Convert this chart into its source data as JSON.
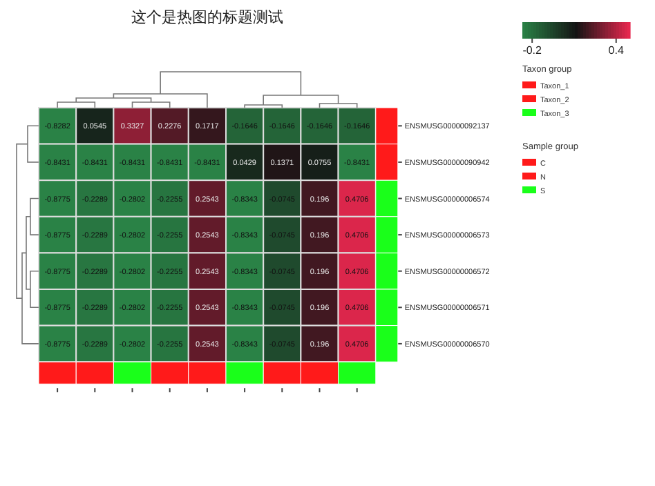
{
  "chart_data": [
    {
      "type": "heatmap",
      "title": "这个是热图的标题测试",
      "categories": [
        null,
        null,
        null,
        null,
        null,
        null,
        null,
        null,
        null
      ],
      "y_categories": [
        "ENSMUSG00000092137",
        "ENSMUSG00000090942",
        "ENSMUSG00000006574",
        "ENSMUSG00000006573",
        "ENSMUSG00000006572",
        "ENSMUSG00000006571",
        "ENSMUSG00000006570"
      ],
      "cells": [
        [
          -0.8282,
          0.0545,
          0.3327,
          0.2276,
          0.1717,
          -0.1646,
          -0.1646,
          -0.1646,
          -0.1646
        ],
        [
          -0.8431,
          -0.8431,
          -0.8431,
          -0.8431,
          -0.8431,
          0.0429,
          0.1371,
          0.0755,
          -0.8431
        ],
        [
          -0.8775,
          -0.2289,
          -0.2802,
          -0.2255,
          0.2543,
          -0.8343,
          -0.0745,
          0.196,
          0.4706
        ],
        [
          -0.8775,
          -0.2289,
          -0.2802,
          -0.2255,
          0.2543,
          -0.8343,
          -0.0745,
          0.196,
          0.4706
        ],
        [
          -0.8775,
          -0.2289,
          -0.2802,
          -0.2255,
          0.2543,
          -0.8343,
          -0.0745,
          0.196,
          0.4706
        ],
        [
          -0.8775,
          -0.2289,
          -0.2802,
          -0.2255,
          0.2543,
          -0.8343,
          -0.0745,
          0.196,
          0.4706
        ],
        [
          -0.8775,
          -0.2289,
          -0.2802,
          -0.2255,
          0.2543,
          -0.8343,
          -0.0745,
          0.196,
          0.4706
        ]
      ],
      "data_labels": true,
      "clim": [
        -0.27,
        0.5
      ],
      "cticks": [
        -0.2,
        0.4
      ]
    },
    {
      "type": "other",
      "title": "Taxon group",
      "categories": [
        "Taxon_1",
        "Taxon_2",
        "Taxon_3"
      ],
      "colors": [
        "#ff1a1a",
        "#ff1a1a",
        "#1aff1a"
      ]
    },
    {
      "type": "other",
      "title": "Sample group",
      "categories": [
        "C",
        "N",
        "S"
      ],
      "colors": [
        "#ff1a1a",
        "#ff1a1a",
        "#1aff1a"
      ]
    }
  ]
}
